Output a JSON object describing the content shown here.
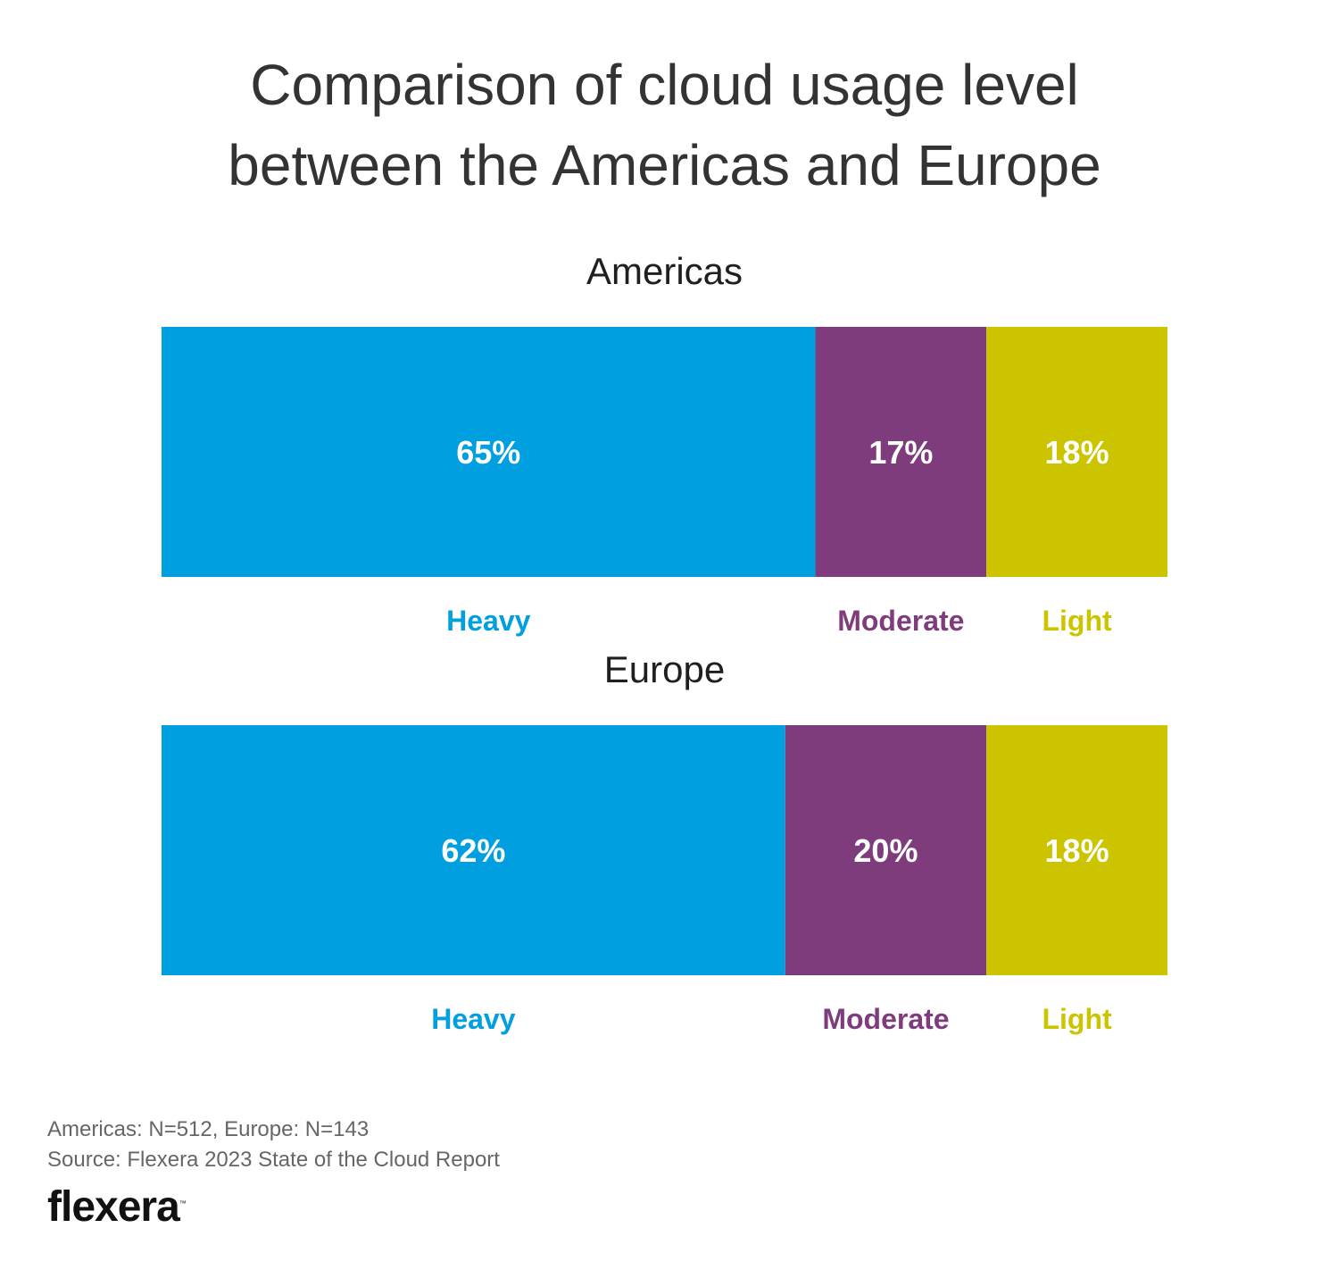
{
  "chart_data": {
    "type": "bar",
    "orientation": "horizontal-stacked",
    "title": "Comparison of cloud usage level between the Americas and Europe",
    "title_lines": [
      "Comparison of cloud usage level",
      "between the Americas and Europe"
    ],
    "categories": [
      "Americas",
      "Europe"
    ],
    "series": [
      {
        "name": "Heavy",
        "color": "#009fdf",
        "values": [
          65,
          62
        ]
      },
      {
        "name": "Moderate",
        "color": "#7f3c7d",
        "values": [
          17,
          20
        ]
      },
      {
        "name": "Light",
        "color": "#cdc400",
        "values": [
          18,
          18
        ]
      }
    ],
    "value_suffix": "%",
    "xlim": [
      0,
      100
    ]
  },
  "footer": {
    "sample_note": "Americas: N=512, Europe: N=143",
    "source": "Source: Flexera 2023 State of the Cloud Report"
  },
  "logo": {
    "text": "flexera",
    "tm": "™"
  }
}
